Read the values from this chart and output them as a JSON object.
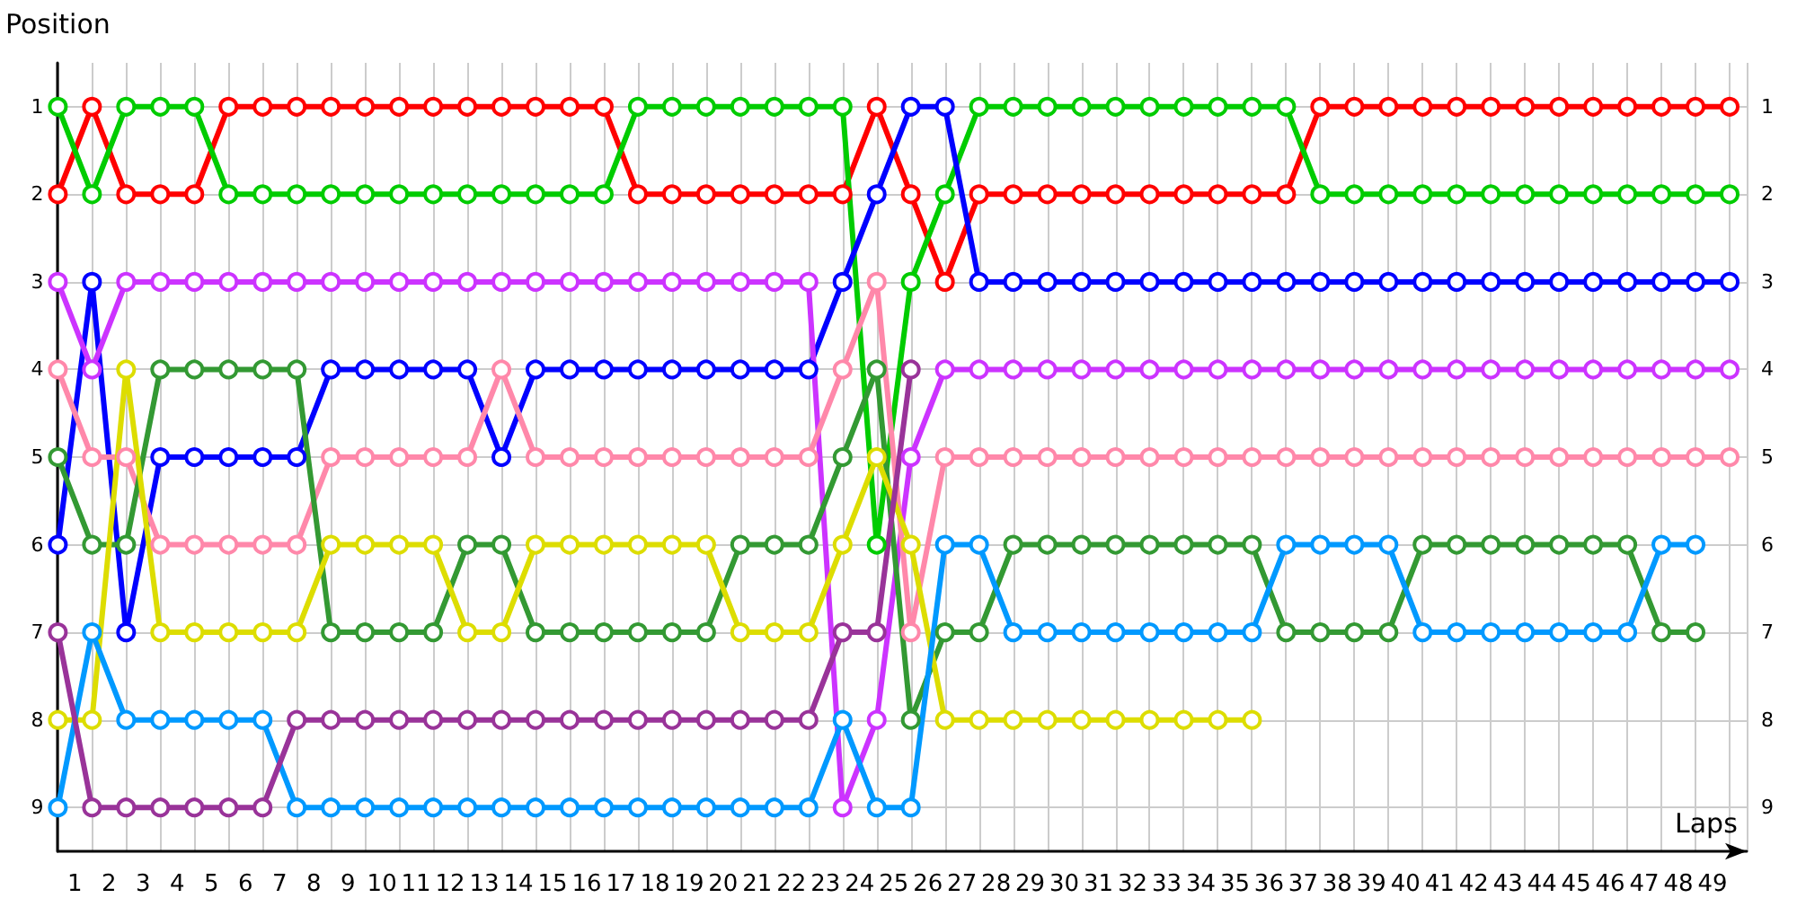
{
  "chart_data": {
    "type": "line",
    "ylabel": "Position",
    "xlabel": "Laps",
    "x": [
      0,
      1,
      2,
      3,
      4,
      5,
      6,
      7,
      8,
      9,
      10,
      11,
      12,
      13,
      14,
      15,
      16,
      17,
      18,
      19,
      20,
      21,
      22,
      23,
      24,
      25,
      26,
      27,
      28,
      29,
      30,
      31,
      32,
      33,
      34,
      35,
      36,
      37,
      38,
      39,
      40,
      41,
      42,
      43,
      44,
      45,
      46,
      47,
      48,
      49
    ],
    "xlim": [
      0,
      49.5
    ],
    "xticks": [
      {
        "value": 0.5,
        "label": "1"
      },
      {
        "value": 1.5,
        "label": "2"
      },
      {
        "value": 2.5,
        "label": "3"
      },
      {
        "value": 3.5,
        "label": "4"
      },
      {
        "value": 4.5,
        "label": "5"
      },
      {
        "value": 5.5,
        "label": "6"
      },
      {
        "value": 6.5,
        "label": "7"
      },
      {
        "value": 7.5,
        "label": "8"
      },
      {
        "value": 8.5,
        "label": "9"
      },
      {
        "value": 9.5,
        "label": "10"
      },
      {
        "value": 10.5,
        "label": "11"
      },
      {
        "value": 11.5,
        "label": "12"
      },
      {
        "value": 12.5,
        "label": "13"
      },
      {
        "value": 13.5,
        "label": "14"
      },
      {
        "value": 14.5,
        "label": "15"
      },
      {
        "value": 15.5,
        "label": "16"
      },
      {
        "value": 16.5,
        "label": "17"
      },
      {
        "value": 17.5,
        "label": "18"
      },
      {
        "value": 18.5,
        "label": "19"
      },
      {
        "value": 19.5,
        "label": "20"
      },
      {
        "value": 20.5,
        "label": "21"
      },
      {
        "value": 21.5,
        "label": "22"
      },
      {
        "value": 22.5,
        "label": "23"
      },
      {
        "value": 23.5,
        "label": "24"
      },
      {
        "value": 24.5,
        "label": "25"
      },
      {
        "value": 25.5,
        "label": "26"
      },
      {
        "value": 26.5,
        "label": "27"
      },
      {
        "value": 27.5,
        "label": "28"
      },
      {
        "value": 28.5,
        "label": "29"
      },
      {
        "value": 29.5,
        "label": "30"
      },
      {
        "value": 30.5,
        "label": "31"
      },
      {
        "value": 31.5,
        "label": "32"
      },
      {
        "value": 32.5,
        "label": "33"
      },
      {
        "value": 33.5,
        "label": "34"
      },
      {
        "value": 34.5,
        "label": "35"
      },
      {
        "value": 35.5,
        "label": "36"
      },
      {
        "value": 36.5,
        "label": "37"
      },
      {
        "value": 37.5,
        "label": "38"
      },
      {
        "value": 38.5,
        "label": "39"
      },
      {
        "value": 39.5,
        "label": "40"
      },
      {
        "value": 40.5,
        "label": "41"
      },
      {
        "value": 41.5,
        "label": "42"
      },
      {
        "value": 42.5,
        "label": "43"
      },
      {
        "value": 43.5,
        "label": "44"
      },
      {
        "value": 44.5,
        "label": "45"
      },
      {
        "value": 45.5,
        "label": "46"
      },
      {
        "value": 46.5,
        "label": "47"
      },
      {
        "value": 47.5,
        "label": "48"
      },
      {
        "value": 48.5,
        "label": "49"
      }
    ],
    "ylim": [
      9.5,
      0.5
    ],
    "yticks": [
      1,
      2,
      3,
      4,
      5,
      6,
      7,
      8,
      9
    ],
    "y2lim": [
      9.5,
      0.5
    ],
    "y2ticks": [
      1,
      2,
      3,
      4,
      5,
      6,
      7,
      8,
      9
    ],
    "grid": true,
    "marker": "circle",
    "line_style": "solid",
    "series": [
      {
        "color": "#ff0000",
        "values": [
          2,
          1,
          2,
          2,
          2,
          1,
          1,
          1,
          1,
          1,
          1,
          1,
          1,
          1,
          1,
          1,
          1,
          2,
          2,
          2,
          2,
          2,
          2,
          2,
          1,
          2,
          3,
          2,
          2,
          2,
          2,
          2,
          2,
          2,
          2,
          2,
          2,
          1,
          1,
          1,
          1,
          1,
          1,
          1,
          1,
          1,
          1,
          1,
          1,
          1
        ]
      },
      {
        "color": "#00cc00",
        "values": [
          1,
          2,
          1,
          1,
          1,
          2,
          2,
          2,
          2,
          2,
          2,
          2,
          2,
          2,
          2,
          2,
          2,
          1,
          1,
          1,
          1,
          1,
          1,
          1,
          6,
          3,
          2,
          1,
          1,
          1,
          1,
          1,
          1,
          1,
          1,
          1,
          1,
          2,
          2,
          2,
          2,
          2,
          2,
          2,
          2,
          2,
          2,
          2,
          2,
          2
        ]
      },
      {
        "color": "#0000ff",
        "values": [
          6,
          3,
          7,
          5,
          5,
          5,
          5,
          5,
          4,
          4,
          4,
          4,
          4,
          5,
          4,
          4,
          4,
          4,
          4,
          4,
          4,
          4,
          4,
          3,
          2,
          1,
          1,
          3,
          3,
          3,
          3,
          3,
          3,
          3,
          3,
          3,
          3,
          3,
          3,
          3,
          3,
          3,
          3,
          3,
          3,
          3,
          3,
          3,
          3,
          3
        ]
      },
      {
        "color": "#cc33ff",
        "values": [
          3,
          4,
          3,
          3,
          3,
          3,
          3,
          3,
          3,
          3,
          3,
          3,
          3,
          3,
          3,
          3,
          3,
          3,
          3,
          3,
          3,
          3,
          3,
          9,
          8,
          5,
          4,
          4,
          4,
          4,
          4,
          4,
          4,
          4,
          4,
          4,
          4,
          4,
          4,
          4,
          4,
          4,
          4,
          4,
          4,
          4,
          4,
          4,
          4,
          4
        ]
      },
      {
        "color": "#ff88aa",
        "values": [
          4,
          5,
          5,
          6,
          6,
          6,
          6,
          6,
          5,
          5,
          5,
          5,
          5,
          4,
          5,
          5,
          5,
          5,
          5,
          5,
          5,
          5,
          5,
          4,
          3,
          7,
          5,
          5,
          5,
          5,
          5,
          5,
          5,
          5,
          5,
          5,
          5,
          5,
          5,
          5,
          5,
          5,
          5,
          5,
          5,
          5,
          5,
          5,
          5,
          5
        ]
      },
      {
        "color": "#339933",
        "values": [
          5,
          6,
          6,
          4,
          4,
          4,
          4,
          4,
          7,
          7,
          7,
          7,
          6,
          6,
          7,
          7,
          7,
          7,
          7,
          7,
          6,
          6,
          6,
          5,
          4,
          8,
          7,
          7,
          6,
          6,
          6,
          6,
          6,
          6,
          6,
          6,
          7,
          7,
          7,
          7,
          6,
          6,
          6,
          6,
          6,
          6,
          6,
          7,
          7,
          null
        ]
      },
      {
        "color": "#dddd00",
        "values": [
          8,
          8,
          4,
          7,
          7,
          7,
          7,
          7,
          6,
          6,
          6,
          6,
          7,
          7,
          6,
          6,
          6,
          6,
          6,
          6,
          7,
          7,
          7,
          6,
          5,
          6,
          8,
          8,
          8,
          8,
          8,
          8,
          8,
          8,
          8,
          8,
          null,
          null,
          null,
          null,
          null,
          null,
          null,
          null,
          null,
          null,
          null,
          null,
          null,
          null
        ]
      },
      {
        "color": "#0099ff",
        "values": [
          9,
          7,
          8,
          8,
          8,
          8,
          8,
          9,
          9,
          9,
          9,
          9,
          9,
          9,
          9,
          9,
          9,
          9,
          9,
          9,
          9,
          9,
          9,
          8,
          9,
          9,
          6,
          6,
          7,
          7,
          7,
          7,
          7,
          7,
          7,
          7,
          6,
          6,
          6,
          6,
          7,
          7,
          7,
          7,
          7,
          7,
          7,
          6,
          6,
          null
        ]
      },
      {
        "color": "#993399",
        "values": [
          7,
          9,
          9,
          9,
          9,
          9,
          9,
          8,
          8,
          8,
          8,
          8,
          8,
          8,
          8,
          8,
          8,
          8,
          8,
          8,
          8,
          8,
          8,
          7,
          7,
          4,
          null,
          null,
          null,
          null,
          null,
          null,
          null,
          null,
          null,
          null,
          null,
          null,
          null,
          null,
          null,
          null,
          null,
          null,
          null,
          null,
          null,
          null,
          null,
          null
        ]
      }
    ]
  }
}
